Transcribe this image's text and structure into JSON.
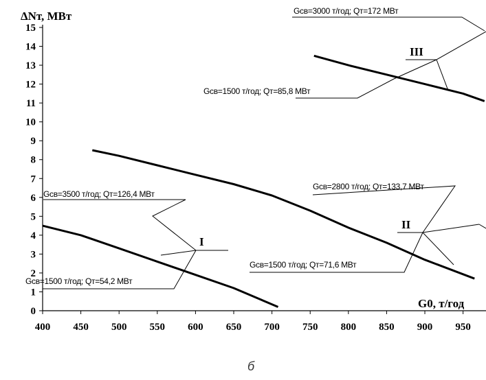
{
  "chart_data": {
    "type": "line",
    "ylabel": "ΔNт, МВт",
    "xlabel": "G0, т/год",
    "caption": "б",
    "xlim": [
      400,
      980
    ],
    "ylim": [
      0,
      15
    ],
    "x_ticks": [
      400,
      450,
      500,
      550,
      600,
      650,
      700,
      750,
      800,
      850,
      900,
      950
    ],
    "y_ticks": [
      0,
      1,
      2,
      3,
      4,
      5,
      6,
      7,
      8,
      9,
      10,
      11,
      12,
      13,
      14,
      15
    ],
    "grid": false,
    "series": [
      {
        "name": "I",
        "points": [
          [
            400,
            4.5
          ],
          [
            450,
            4.0
          ],
          [
            500,
            3.3
          ],
          [
            550,
            2.6
          ],
          [
            600,
            1.9
          ],
          [
            650,
            1.2
          ],
          [
            708,
            0.2
          ]
        ]
      },
      {
        "name": "II",
        "points": [
          [
            465,
            8.5
          ],
          [
            500,
            8.2
          ],
          [
            550,
            7.7
          ],
          [
            600,
            7.2
          ],
          [
            650,
            6.7
          ],
          [
            700,
            6.1
          ],
          [
            750,
            5.3
          ],
          [
            800,
            4.4
          ],
          [
            850,
            3.6
          ],
          [
            900,
            2.7
          ],
          [
            965,
            1.7
          ]
        ]
      },
      {
        "name": "III",
        "points": [
          [
            755,
            13.5
          ],
          [
            800,
            13.0
          ],
          [
            850,
            12.5
          ],
          [
            900,
            12.0
          ],
          [
            950,
            11.5
          ],
          [
            978,
            11.1
          ]
        ]
      }
    ],
    "annotations": [
      {
        "text": "Gсв=3000 т/год; Qт=172 МВт"
      },
      {
        "text": "Gсв=1500 т/год; Qт=85,8 МВт"
      },
      {
        "text": "Gсв=3500 т/год; Qт=126,4 МВт"
      },
      {
        "text": "Gсв=1500 т/год; Qт=54,2 МВт"
      },
      {
        "text": "Gсв=2800 т/год; Qт=133,7 МВт"
      },
      {
        "text": "Gсв=1500 т/год; Qт=71,6 МВт"
      }
    ],
    "group_labels": [
      "I",
      "II",
      "III"
    ]
  }
}
